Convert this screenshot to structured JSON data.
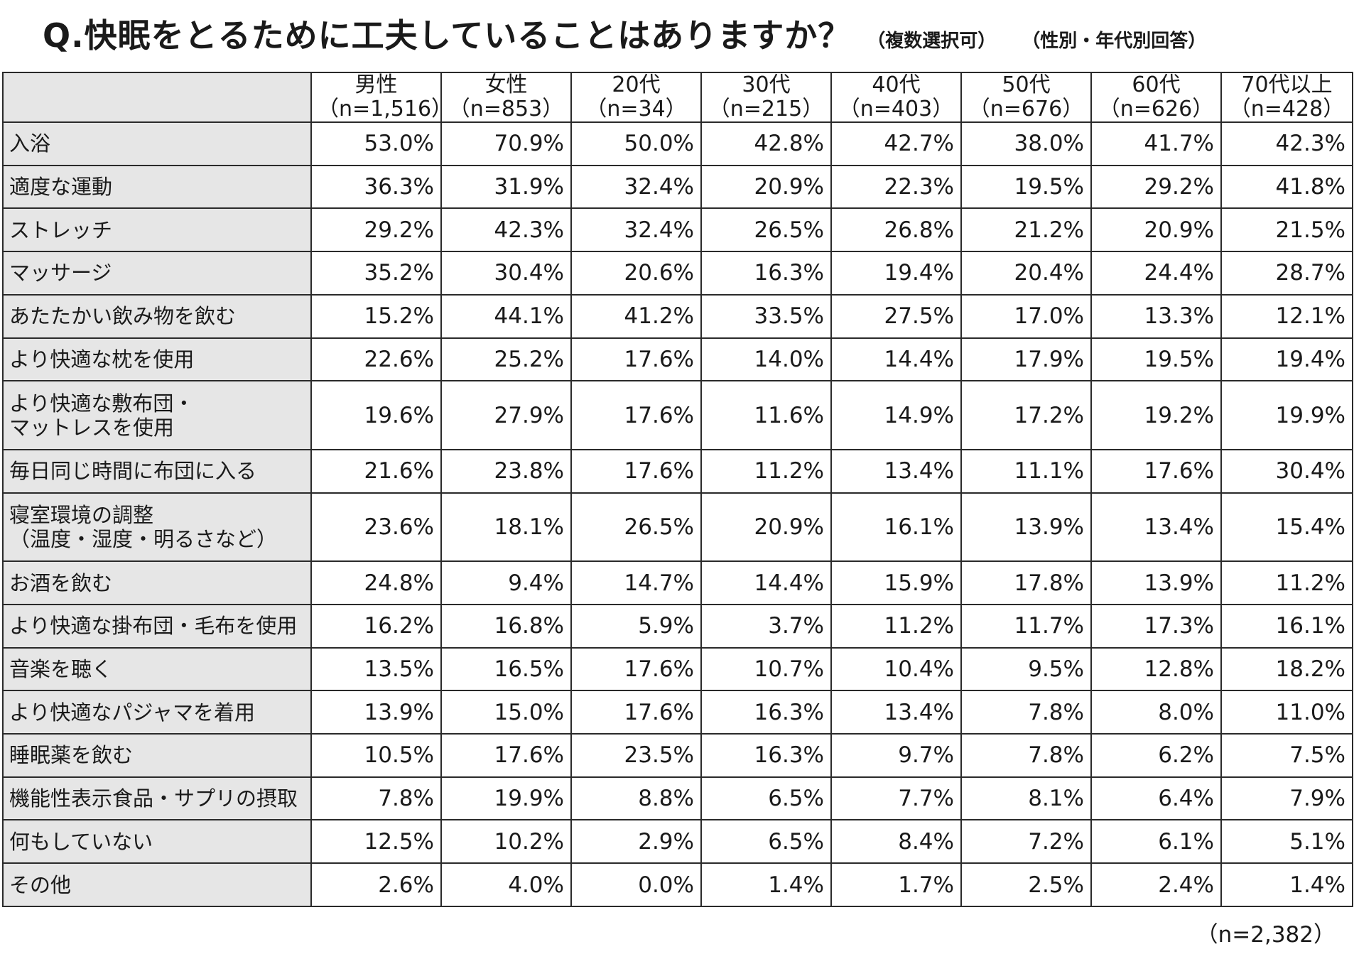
{
  "title": {
    "main": "Q.快眠をとるために工夫していることはありますか？",
    "note": "（複数選択可）",
    "note2": "（性別・年代別回答）"
  },
  "footnote": "（n=2,382）",
  "chart_data": {
    "type": "table",
    "columns": [
      {
        "label": "男性",
        "n": "（n=1,516）"
      },
      {
        "label": "女性",
        "n": "（n=853）"
      },
      {
        "label": "20代",
        "n": "（n=34）"
      },
      {
        "label": "30代",
        "n": "（n=215）"
      },
      {
        "label": "40代",
        "n": "（n=403）"
      },
      {
        "label": "50代",
        "n": "（n=676）"
      },
      {
        "label": "60代",
        "n": "（n=626）"
      },
      {
        "label": "70代以上",
        "n": "（n=428）"
      }
    ],
    "rows": [
      {
        "label": [
          "入浴"
        ],
        "values": [
          "53.0%",
          "70.9%",
          "50.0%",
          "42.8%",
          "42.7%",
          "38.0%",
          "41.7%",
          "42.3%"
        ]
      },
      {
        "label": [
          "適度な運動"
        ],
        "values": [
          "36.3%",
          "31.9%",
          "32.4%",
          "20.9%",
          "22.3%",
          "19.5%",
          "29.2%",
          "41.8%"
        ]
      },
      {
        "label": [
          "ストレッチ"
        ],
        "values": [
          "29.2%",
          "42.3%",
          "32.4%",
          "26.5%",
          "26.8%",
          "21.2%",
          "20.9%",
          "21.5%"
        ]
      },
      {
        "label": [
          "マッサージ"
        ],
        "values": [
          "35.2%",
          "30.4%",
          "20.6%",
          "16.3%",
          "19.4%",
          "20.4%",
          "24.4%",
          "28.7%"
        ]
      },
      {
        "label": [
          "あたたかい飲み物を飲む"
        ],
        "values": [
          "15.2%",
          "44.1%",
          "41.2%",
          "33.5%",
          "27.5%",
          "17.0%",
          "13.3%",
          "12.1%"
        ]
      },
      {
        "label": [
          "より快適な枕を使用"
        ],
        "values": [
          "22.6%",
          "25.2%",
          "17.6%",
          "14.0%",
          "14.4%",
          "17.9%",
          "19.5%",
          "19.4%"
        ]
      },
      {
        "label": [
          "より快適な敷布団・",
          "マットレスを使用"
        ],
        "values": [
          "19.6%",
          "27.9%",
          "17.6%",
          "11.6%",
          "14.9%",
          "17.2%",
          "19.2%",
          "19.9%"
        ]
      },
      {
        "label": [
          "毎日同じ時間に布団に入る"
        ],
        "values": [
          "21.6%",
          "23.8%",
          "17.6%",
          "11.2%",
          "13.4%",
          "11.1%",
          "17.6%",
          "30.4%"
        ]
      },
      {
        "label": [
          "寝室環境の調整",
          "（温度・湿度・明るさなど）"
        ],
        "values": [
          "23.6%",
          "18.1%",
          "26.5%",
          "20.9%",
          "16.1%",
          "13.9%",
          "13.4%",
          "15.4%"
        ]
      },
      {
        "label": [
          "お酒を飲む"
        ],
        "values": [
          "24.8%",
          "9.4%",
          "14.7%",
          "14.4%",
          "15.9%",
          "17.8%",
          "13.9%",
          "11.2%"
        ]
      },
      {
        "label": [
          "より快適な掛布団・毛布を使用"
        ],
        "values": [
          "16.2%",
          "16.8%",
          "5.9%",
          "3.7%",
          "11.2%",
          "11.7%",
          "17.3%",
          "16.1%"
        ]
      },
      {
        "label": [
          "音楽を聴く"
        ],
        "values": [
          "13.5%",
          "16.5%",
          "17.6%",
          "10.7%",
          "10.4%",
          "9.5%",
          "12.8%",
          "18.2%"
        ]
      },
      {
        "label": [
          "より快適なパジャマを着用"
        ],
        "values": [
          "13.9%",
          "15.0%",
          "17.6%",
          "16.3%",
          "13.4%",
          "7.8%",
          "8.0%",
          "11.0%"
        ]
      },
      {
        "label": [
          "睡眠薬を飲む"
        ],
        "values": [
          "10.5%",
          "17.6%",
          "23.5%",
          "16.3%",
          "9.7%",
          "7.8%",
          "6.2%",
          "7.5%"
        ]
      },
      {
        "label": [
          "機能性表示食品・サプリの摂取"
        ],
        "values": [
          "7.8%",
          "19.9%",
          "8.8%",
          "6.5%",
          "7.7%",
          "8.1%",
          "6.4%",
          "7.9%"
        ]
      },
      {
        "label": [
          "何もしていない"
        ],
        "values": [
          "12.5%",
          "10.2%",
          "2.9%",
          "6.5%",
          "8.4%",
          "7.2%",
          "6.1%",
          "5.1%"
        ]
      },
      {
        "label": [
          "その他"
        ],
        "values": [
          "2.6%",
          "4.0%",
          "0.0%",
          "1.4%",
          "1.7%",
          "2.5%",
          "2.4%",
          "1.4%"
        ]
      }
    ]
  },
  "colors": {
    "label_cell_bg": "#e6e6e6",
    "border": "#2a2a2a",
    "text": "#1a1a1a"
  }
}
